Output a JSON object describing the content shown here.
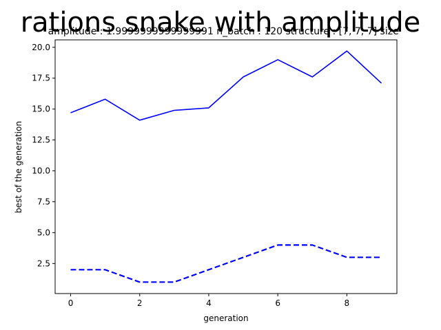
{
  "chart_data": {
    "type": "line",
    "title": "rations snake with amplitude",
    "subtitle": "' amplitude : 1.9999999999999991 n_batch : 120 structure : [7, 7, 7] size",
    "xlabel": "generation",
    "ylabel": "best of the generation",
    "xlim": [
      -0.45,
      9.45
    ],
    "ylim": [
      0.07,
      20.6
    ],
    "xticks": [
      0,
      2,
      4,
      6,
      8
    ],
    "yticks": [
      2.5,
      5.0,
      7.5,
      10.0,
      12.5,
      15.0,
      17.5,
      20.0
    ],
    "ytick_labels": [
      "2.5",
      "5.0",
      "7.5",
      "10.0",
      "12.5",
      "15.0",
      "17.5",
      "20.0"
    ],
    "grid": false,
    "x": [
      0,
      1,
      2,
      3,
      4,
      5,
      6,
      7,
      8,
      9
    ],
    "series": [
      {
        "values": [
          14.7,
          15.8,
          14.1,
          14.9,
          15.1,
          17.6,
          19.0,
          17.6,
          19.7,
          17.1
        ],
        "color": "#0000ff",
        "style": "solid"
      },
      {
        "values": [
          2,
          2,
          1,
          1,
          2,
          3,
          4,
          4,
          3,
          3
        ],
        "color": "#0000ff",
        "style": "dashed"
      }
    ]
  }
}
